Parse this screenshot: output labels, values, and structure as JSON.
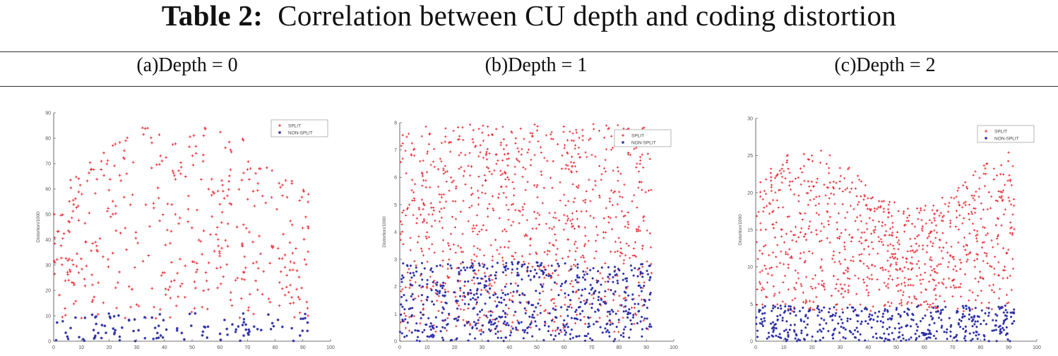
{
  "header": {
    "label": "Table 2:",
    "caption": "Correlation between CU depth and coding distortion"
  },
  "colors": {
    "split": "#e8232b",
    "non_split": "#2d2fa8",
    "axis": "#444444"
  },
  "chart_data": [
    {
      "type": "scatter",
      "title": "(a)Depth = 0",
      "xlabel": "",
      "ylabel": "Distortion/1000",
      "xlim": [
        0,
        100
      ],
      "ylim": [
        0,
        90
      ],
      "xticks": [
        "0",
        "10",
        "20",
        "30",
        "40",
        "50",
        "60",
        "70",
        "80",
        "90",
        "100"
      ],
      "yticks": [
        "0",
        "10",
        "20",
        "30",
        "40",
        "50",
        "60",
        "70",
        "80",
        "90"
      ],
      "legend_position": "top-right",
      "series": [
        {
          "name": "SPLIT",
          "marker": "+",
          "n": 420,
          "x_range": [
            0,
            92
          ],
          "y_range": [
            9,
            88
          ],
          "trend": "hump"
        },
        {
          "name": "NON-SPLIT",
          "marker": "*",
          "n": 110,
          "x_range": [
            0,
            92
          ],
          "y_range": [
            0,
            11
          ],
          "trend": "flat"
        }
      ]
    },
    {
      "type": "scatter",
      "title": "(b)Depth = 1",
      "xlabel": "",
      "ylabel": "Distortion/1000",
      "xlim": [
        0,
        100
      ],
      "ylim": [
        0,
        8
      ],
      "xticks": [
        "0",
        "10",
        "20",
        "30",
        "40",
        "50",
        "60",
        "70",
        "80",
        "90",
        "100"
      ],
      "yticks": [
        "0",
        "1",
        "2",
        "3",
        "4",
        "5",
        "6",
        "7",
        "8"
      ],
      "legend_position": "top-right",
      "series": [
        {
          "name": "SPLIT",
          "marker": "+",
          "n": 950,
          "x_range": [
            0,
            92
          ],
          "y_range": [
            0.3,
            7.95
          ],
          "trend": "dense"
        },
        {
          "name": "NON-SPLIT",
          "marker": "*",
          "n": 620,
          "x_range": [
            0,
            92
          ],
          "y_range": [
            0,
            2.9
          ],
          "trend": "dense"
        }
      ]
    },
    {
      "type": "scatter",
      "title": "(c)Depth = 2",
      "xlabel": "",
      "ylabel": "Distortion/1000",
      "xlim": [
        0,
        100
      ],
      "ylim": [
        0,
        30
      ],
      "xticks": [
        "0",
        "10",
        "20",
        "30",
        "40",
        "50",
        "60",
        "70",
        "80",
        "90",
        "100"
      ],
      "yticks": [
        "0",
        "5",
        "10",
        "15",
        "20",
        "25",
        "30"
      ],
      "legend_position": "top-right",
      "series": [
        {
          "name": "SPLIT",
          "marker": "+",
          "n": 900,
          "x_range": [
            0,
            92
          ],
          "y_range": [
            4,
            26
          ],
          "trend": "wavy"
        },
        {
          "name": "NON-SPLIT",
          "marker": "*",
          "n": 430,
          "x_range": [
            0,
            92
          ],
          "y_range": [
            0,
            4.8
          ],
          "trend": "dense"
        }
      ]
    }
  ]
}
